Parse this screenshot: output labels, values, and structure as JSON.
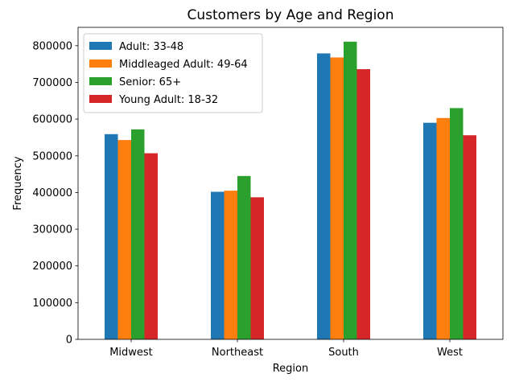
{
  "chart_data": {
    "type": "bar",
    "title": "Customers by Age and Region",
    "xlabel": "Region",
    "ylabel": "Frequency",
    "categories": [
      "Midwest",
      "Northeast",
      "South",
      "West"
    ],
    "ylim": [
      0,
      850000
    ],
    "yticks": [
      0,
      100000,
      200000,
      300000,
      400000,
      500000,
      600000,
      700000,
      800000
    ],
    "legend_position": "top-left",
    "grid": false,
    "series": [
      {
        "name": "Adult: 33-48",
        "color": "#1f77b4",
        "values": [
          559000,
          402000,
          779000,
          590000
        ]
      },
      {
        "name": "Middleaged Adult: 49-64",
        "color": "#ff7f0e",
        "values": [
          543000,
          405000,
          768000,
          603000
        ]
      },
      {
        "name": "Senior: 65+",
        "color": "#2ca02c",
        "values": [
          572000,
          445000,
          811000,
          630000
        ]
      },
      {
        "name": "Young Adult: 18-32",
        "color": "#d62728",
        "values": [
          507000,
          387000,
          736000,
          556000
        ]
      }
    ]
  }
}
